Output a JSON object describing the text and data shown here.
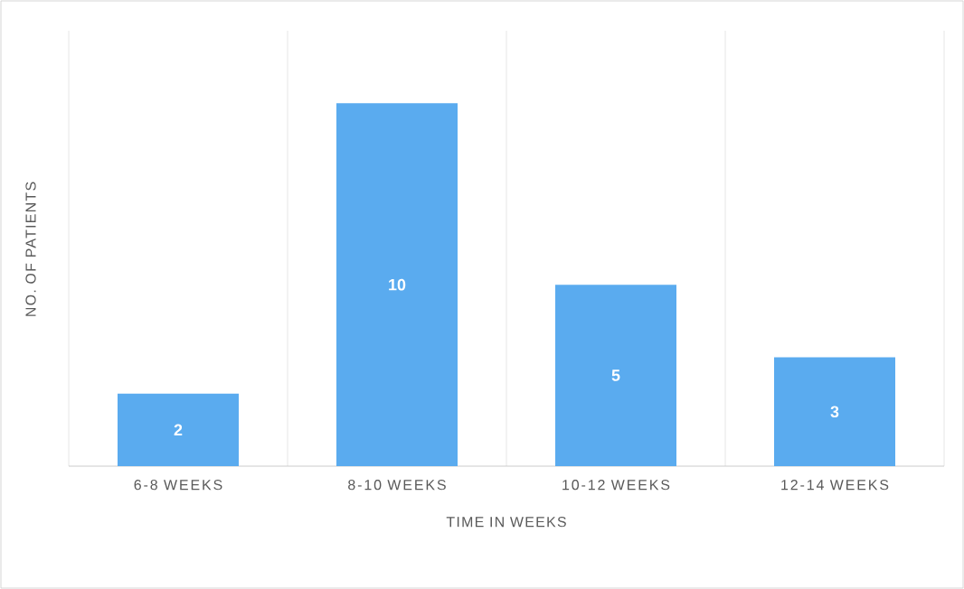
{
  "chart_data": {
    "type": "bar",
    "xlabel": "TIME IN WEEKS",
    "ylabel": "NO. OF PATIENTS",
    "categories": [
      "6-8 WEEKS",
      "8-10 WEEKS",
      "10-12 WEEKS",
      "12-14 WEEKS"
    ],
    "values": [
      2,
      10,
      5,
      3
    ],
    "color": "#5aabef",
    "ylim": [
      0,
      12
    ],
    "tick_labels": "x",
    "data_labels": true,
    "grid": "x"
  }
}
